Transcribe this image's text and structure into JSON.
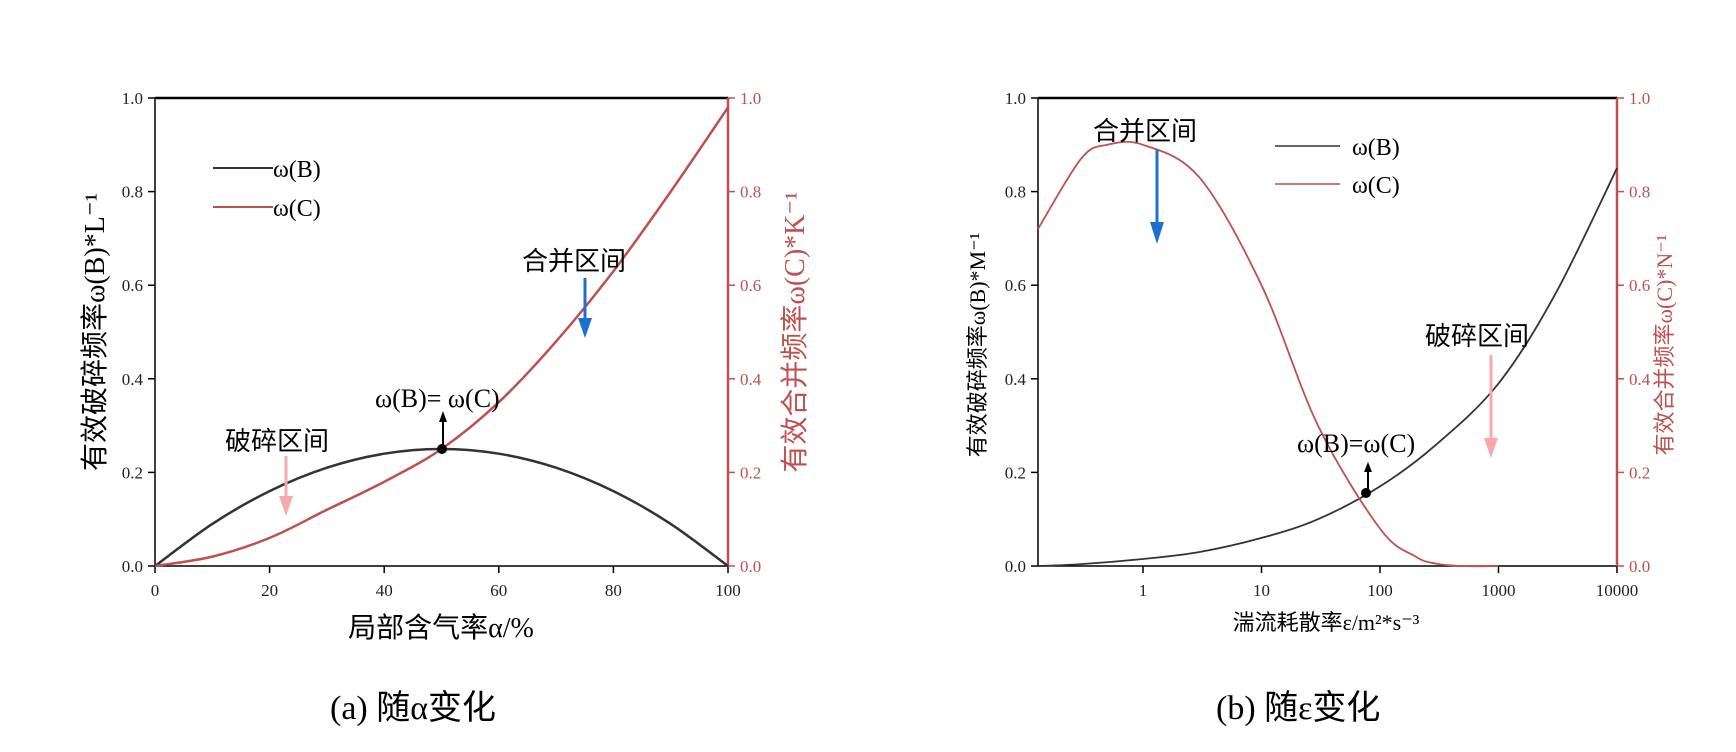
{
  "colors": {
    "B": "#333333",
    "C": "#c0504d",
    "merge_arrow": "#1f6fd1",
    "break_arrow": "#f4aaaa"
  },
  "panel_a": {
    "caption": "(a) 随α变化",
    "xlabel": "局部含气率α/%",
    "ylabel_left": "有效破碎频率ω(B)*L⁻¹",
    "ylabel_right": "有效合并频率ω(C)*K⁻¹",
    "legend": [
      "ω(B)",
      "ω(C)"
    ],
    "annotations": {
      "merge": "合并区间",
      "break": "破碎区间",
      "equal": "ω(B)= ω(C)"
    },
    "x_ticks": [
      "0",
      "20",
      "40",
      "60",
      "80",
      "100"
    ],
    "y_ticks_left": [
      "0.0",
      "0.2",
      "0.4",
      "0.6",
      "0.8",
      "1.0"
    ],
    "y_ticks_right": [
      "0.0",
      "0.2",
      "0.4",
      "0.6",
      "0.8",
      "1.0"
    ]
  },
  "panel_b": {
    "caption": "(b) 随ε变化",
    "xlabel": "湍流耗散率ε/m²*s⁻³",
    "ylabel_left": "有效破碎频率ω(B)*M⁻¹",
    "ylabel_right": "有效合并频率ω(C)*N⁻¹",
    "legend": [
      "ω(B)",
      "ω(C)"
    ],
    "annotations": {
      "merge": "合并区间",
      "break": "破碎区间",
      "equal": "ω(B)=ω(C)"
    },
    "x_ticks": [
      "1",
      "10",
      "100",
      "1000",
      "10000"
    ],
    "y_ticks_left": [
      "0.0",
      "0.2",
      "0.4",
      "0.6",
      "0.8",
      "1.0"
    ],
    "y_ticks_right": [
      "0.0",
      "0.2",
      "0.4",
      "0.6",
      "0.8",
      "1.0"
    ]
  },
  "chart_data": [
    {
      "type": "line",
      "xlabel": "局部含气率α/%",
      "ylabel": "有效破碎频率ω(B)*L⁻¹",
      "y2label": "有效合并频率ω(C)*K⁻¹",
      "xlim": [
        0,
        100
      ],
      "ylim": [
        0,
        1
      ],
      "y2lim": [
        0,
        1
      ],
      "legend_position": "top-left",
      "series": [
        {
          "name": "ω(B)",
          "axis": "left",
          "x": [
            0,
            10,
            20,
            30,
            40,
            50,
            60,
            70,
            80,
            90,
            100
          ],
          "y": [
            0,
            0.09,
            0.16,
            0.21,
            0.24,
            0.25,
            0.24,
            0.21,
            0.16,
            0.09,
            0
          ]
        },
        {
          "name": "ω(C)",
          "axis": "right",
          "x": [
            0,
            10,
            20,
            30,
            40,
            50,
            60,
            70,
            80,
            90,
            100
          ],
          "y": [
            0,
            0.02,
            0.06,
            0.12,
            0.18,
            0.25,
            0.35,
            0.48,
            0.63,
            0.8,
            0.98
          ]
        }
      ],
      "annotations": [
        {
          "text": "ω(B)= ω(C)",
          "x": 50,
          "y": 0.25
        },
        {
          "text": "合并区间",
          "x": 75,
          "y": 0.62
        },
        {
          "text": "破碎区间",
          "x": 23,
          "y": 0.27
        }
      ]
    },
    {
      "type": "line",
      "xlabel": "湍流耗散率ε/m²*s⁻³",
      "ylabel": "有效破碎频率ω(B)*M⁻¹",
      "y2label": "有效合并频率ω(C)*N⁻¹",
      "xscale": "log",
      "xlim": [
        0.13,
        10000
      ],
      "ylim": [
        0,
        1
      ],
      "y2lim": [
        0,
        1
      ],
      "legend_position": "top-right",
      "series": [
        {
          "name": "ω(B)",
          "axis": "left",
          "x": [
            0.13,
            0.3,
            1,
            3,
            10,
            30,
            100,
            300,
            1000,
            3000,
            10000
          ],
          "y": [
            0,
            0.004,
            0.015,
            0.03,
            0.06,
            0.1,
            0.17,
            0.26,
            0.39,
            0.58,
            0.85
          ]
        },
        {
          "name": "ω(C)",
          "axis": "right",
          "x": [
            0.13,
            0.3,
            0.5,
            1,
            3,
            10,
            30,
            100,
            200,
            300,
            500,
            1000
          ],
          "y": [
            0.72,
            0.87,
            0.9,
            0.9,
            0.83,
            0.6,
            0.3,
            0.08,
            0.02,
            0.005,
            0,
            0
          ]
        }
      ],
      "annotations": [
        {
          "text": "ω(B)=ω(C)",
          "x": 75,
          "y": 0.155
        },
        {
          "text": "合并区间",
          "x": 1.3,
          "y": 0.93
        },
        {
          "text": "破碎区间",
          "x": 800,
          "y": 0.48
        }
      ]
    }
  ]
}
